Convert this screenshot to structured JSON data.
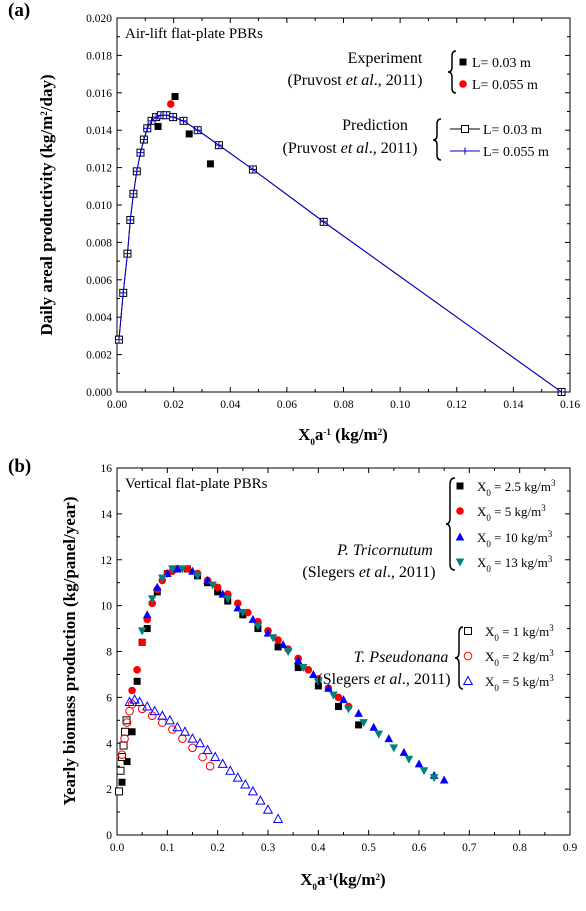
{
  "chart_data": [
    {
      "type": "scatter",
      "panel_label": "(a)",
      "title": "Air-lift flat-plate PBRs",
      "xlabel": "X0a-1 (kg/m2)",
      "ylabel": "Daily areal productivity (kg/m2/day)",
      "xlim": [
        0,
        0.16
      ],
      "ylim": [
        0,
        0.02
      ],
      "x_ticks": [
        "0.00",
        "0.02",
        "0.04",
        "0.06",
        "0.08",
        "0.10",
        "0.12",
        "0.14",
        "0.16"
      ],
      "y_ticks": [
        "0.000",
        "0.002",
        "0.004",
        "0.006",
        "0.008",
        "0.010",
        "0.012",
        "0.014",
        "0.016",
        "0.018",
        "0.020"
      ],
      "grid": false,
      "legend": {
        "group1_line1": "Experiment",
        "group1_line2": "(Pruvost et al., 2011)",
        "group2_line1": "Prediction",
        "group2_line2": "(Pruvost et al., 2011)",
        "entries": [
          "L= 0.03 m",
          "L= 0.055 m",
          "L= 0.03 m",
          "L= 0.055 m"
        ]
      },
      "series": [
        {
          "name": "L= 0.03 m",
          "kind": "experiment",
          "marker": "filled-square",
          "color": "#000000",
          "x": [
            0.0145,
            0.0205,
            0.0255,
            0.033
          ],
          "y": [
            0.0142,
            0.0158,
            0.0138,
            0.0122
          ]
        },
        {
          "name": "L= 0.055 m",
          "kind": "experiment",
          "marker": "filled-circle",
          "color": "#ff0000",
          "x": [
            0.019
          ],
          "y": [
            0.0154
          ]
        },
        {
          "name": "L= 0.03 m",
          "kind": "prediction",
          "marker": "open-square",
          "color": "#000000",
          "x": [
            0.0007,
            0.0022,
            0.0037,
            0.0047,
            0.0058,
            0.007,
            0.0083,
            0.0095,
            0.0107,
            0.0122,
            0.0138,
            0.0155,
            0.0175,
            0.0198,
            0.0235,
            0.0285,
            0.036,
            0.048,
            0.073,
            0.157
          ],
          "y": [
            0.0028,
            0.0053,
            0.0074,
            0.0092,
            0.0106,
            0.0118,
            0.0128,
            0.0135,
            0.0141,
            0.0145,
            0.0147,
            0.0148,
            0.0148,
            0.0147,
            0.0145,
            0.014,
            0.0132,
            0.0119,
            0.0091,
            0.0
          ]
        },
        {
          "name": "L= 0.055 m",
          "kind": "prediction",
          "marker": "plus-line",
          "color": "#0000cc",
          "x": [
            0.0007,
            0.0022,
            0.0037,
            0.0047,
            0.0058,
            0.007,
            0.0083,
            0.0095,
            0.0107,
            0.0122,
            0.0138,
            0.0155,
            0.0175,
            0.0198,
            0.0235,
            0.0285,
            0.036,
            0.048,
            0.073,
            0.157
          ],
          "y": [
            0.0028,
            0.0053,
            0.0074,
            0.0092,
            0.0106,
            0.0118,
            0.0128,
            0.0135,
            0.0141,
            0.0145,
            0.0147,
            0.0148,
            0.0148,
            0.0147,
            0.0145,
            0.014,
            0.0132,
            0.0119,
            0.0091,
            0.0
          ]
        }
      ]
    },
    {
      "type": "scatter",
      "panel_label": "(b)",
      "title": "Vertical flat-plate PBRs",
      "xlabel": "X0a-1(kg/m2)",
      "ylabel": "Yearly biomass production (kg/panel/year)",
      "xlim": [
        0,
        0.9
      ],
      "ylim": [
        0,
        16
      ],
      "x_ticks": [
        "0.0",
        "0.1",
        "0.2",
        "0.3",
        "0.4",
        "0.5",
        "0.6",
        "0.7",
        "0.8",
        "0.9"
      ],
      "y_ticks": [
        "0",
        "2",
        "4",
        "6",
        "8",
        "10",
        "12",
        "14",
        "16"
      ],
      "grid": false,
      "legend": {
        "group1_line1": "P. Tricornutum",
        "group1_line2": "(Slegers et al., 2011)",
        "group2_line1": "T. Pseudonana",
        "group2_line2": "(Slegers et al., 2011)",
        "entries": [
          "X0 = 2.5 kg/m3",
          "X0 = 5 kg/m3",
          "X0 = 10 kg/m3",
          "X0 = 13 kg/m3",
          "X0 = 1 kg/m3",
          "X0 = 2 kg/m3",
          "X0 = 5 kg/m3"
        ]
      },
      "series": [
        {
          "name": "X0 = 2.5 kg/m3",
          "marker": "filled-square",
          "color": "#000000",
          "x": [
            0.01,
            0.02,
            0.03,
            0.04,
            0.05,
            0.06,
            0.08,
            0.1,
            0.12,
            0.14,
            0.16,
            0.18,
            0.2,
            0.22,
            0.25,
            0.28,
            0.32,
            0.36,
            0.4,
            0.44,
            0.48
          ],
          "y": [
            2.3,
            3.2,
            4.5,
            6.7,
            8.4,
            9.0,
            10.6,
            11.4,
            11.6,
            11.6,
            11.3,
            11.0,
            10.6,
            10.2,
            9.6,
            9.0,
            8.2,
            7.3,
            6.5,
            5.6,
            4.8
          ]
        },
        {
          "name": "X0 = 5 kg/m3",
          "marker": "filled-circle",
          "color": "#ff0000",
          "x": [
            0.03,
            0.04,
            0.05,
            0.06,
            0.07,
            0.08,
            0.09,
            0.1,
            0.11,
            0.12,
            0.14,
            0.16,
            0.18,
            0.2,
            0.22,
            0.24,
            0.26,
            0.28,
            0.3,
            0.32,
            0.34,
            0.36,
            0.38,
            0.4,
            0.42,
            0.44,
            0.46
          ],
          "y": [
            6.3,
            7.2,
            8.4,
            9.4,
            10.1,
            10.7,
            11.1,
            11.4,
            11.5,
            11.6,
            11.6,
            11.4,
            11.1,
            10.8,
            10.5,
            10.1,
            9.7,
            9.3,
            8.9,
            8.5,
            8.1,
            7.7,
            7.2,
            6.8,
            6.4,
            6.0,
            5.6
          ]
        },
        {
          "name": "X0 = 10 kg/m3",
          "marker": "filled-triangle-up",
          "color": "#0000ff",
          "x": [
            0.06,
            0.08,
            0.1,
            0.12,
            0.15,
            0.18,
            0.21,
            0.24,
            0.27,
            0.3,
            0.33,
            0.36,
            0.39,
            0.42,
            0.45,
            0.48,
            0.51,
            0.54,
            0.57,
            0.6,
            0.63,
            0.65
          ],
          "y": [
            9.6,
            10.8,
            11.4,
            11.6,
            11.5,
            11.1,
            10.5,
            9.9,
            9.4,
            8.8,
            8.3,
            7.6,
            7.0,
            6.4,
            5.9,
            5.3,
            4.7,
            4.2,
            3.6,
            3.1,
            2.6,
            2.4
          ]
        },
        {
          "name": "X0 = 13 kg/m3",
          "marker": "filled-triangle-down",
          "color": "#008080",
          "x": [
            0.05,
            0.07,
            0.09,
            0.11,
            0.13,
            0.16,
            0.19,
            0.22,
            0.25,
            0.28,
            0.31,
            0.34,
            0.37,
            0.4,
            0.43,
            0.46,
            0.49,
            0.52,
            0.55,
            0.58,
            0.61,
            0.63
          ],
          "y": [
            8.9,
            10.3,
            11.2,
            11.6,
            11.6,
            11.3,
            10.9,
            10.3,
            9.7,
            9.1,
            8.6,
            8.0,
            7.3,
            6.7,
            6.1,
            5.5,
            4.9,
            4.4,
            3.8,
            3.3,
            2.8,
            2.5
          ]
        },
        {
          "name": "X0 = 1 kg/m3",
          "marker": "open-square",
          "color": "#000000",
          "x": [
            0.004,
            0.007,
            0.01,
            0.013,
            0.016,
            0.019
          ],
          "y": [
            1.9,
            2.8,
            3.4,
            3.9,
            4.5,
            5.0
          ]
        },
        {
          "name": "X0 = 2 kg/m3",
          "marker": "open-circle",
          "color": "#ff0000",
          "x": [
            0.01,
            0.015,
            0.02,
            0.025,
            0.03,
            0.05,
            0.07,
            0.09,
            0.11,
            0.13,
            0.15,
            0.17,
            0.185
          ],
          "y": [
            3.5,
            4.2,
            4.9,
            5.4,
            5.7,
            5.5,
            5.2,
            4.9,
            4.6,
            4.2,
            3.8,
            3.4,
            3.0
          ]
        },
        {
          "name": "X0 = 5 kg/m3",
          "marker": "open-triangle-up",
          "color": "#0000ff",
          "x": [
            0.025,
            0.035,
            0.045,
            0.06,
            0.075,
            0.09,
            0.105,
            0.12,
            0.135,
            0.15,
            0.165,
            0.18,
            0.195,
            0.21,
            0.225,
            0.24,
            0.255,
            0.27,
            0.285,
            0.3,
            0.32
          ],
          "y": [
            5.8,
            5.9,
            5.8,
            5.6,
            5.4,
            5.2,
            5.0,
            4.7,
            4.5,
            4.2,
            4.0,
            3.7,
            3.4,
            3.1,
            2.8,
            2.5,
            2.2,
            1.9,
            1.5,
            1.1,
            0.7
          ]
        }
      ]
    }
  ]
}
